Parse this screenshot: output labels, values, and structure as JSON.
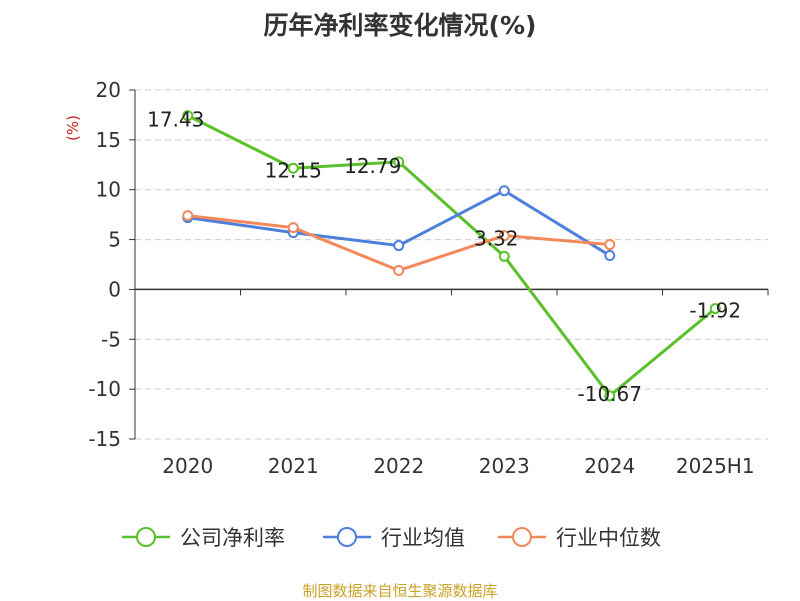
{
  "title": "历年净利率变化情况(%)",
  "source": "制图数据来自恒生聚源数据库",
  "colors": {
    "source_text": "#c9a227",
    "unit_text": "#cc2222",
    "axis": "#333333",
    "grid": "#cccccc"
  },
  "chart_data": {
    "type": "line",
    "categories": [
      "2020",
      "2021",
      "2022",
      "2023",
      "2024",
      "2025H1"
    ],
    "ylabel": "(%)",
    "ylim": [
      -15,
      20
    ],
    "yticks": [
      20,
      15,
      10,
      5,
      0,
      -5,
      -10,
      -15
    ],
    "grid": true,
    "legend_position": "bottom",
    "series": [
      {
        "name": "公司净利率",
        "color": "#5ac02c",
        "values": [
          17.43,
          12.15,
          12.79,
          3.32,
          -10.67,
          -1.92
        ],
        "labels": [
          "17.43",
          "12.15",
          "12.79",
          "3.32",
          "-10.67",
          "-1.92"
        ]
      },
      {
        "name": "行业均值",
        "color": "#4f7fdc",
        "values": [
          7.2,
          5.7,
          4.4,
          9.9,
          3.4,
          null
        ]
      },
      {
        "name": "行业中位数",
        "color": "#f3895a",
        "values": [
          7.4,
          6.2,
          1.9,
          5.4,
          4.5,
          null
        ]
      }
    ]
  }
}
